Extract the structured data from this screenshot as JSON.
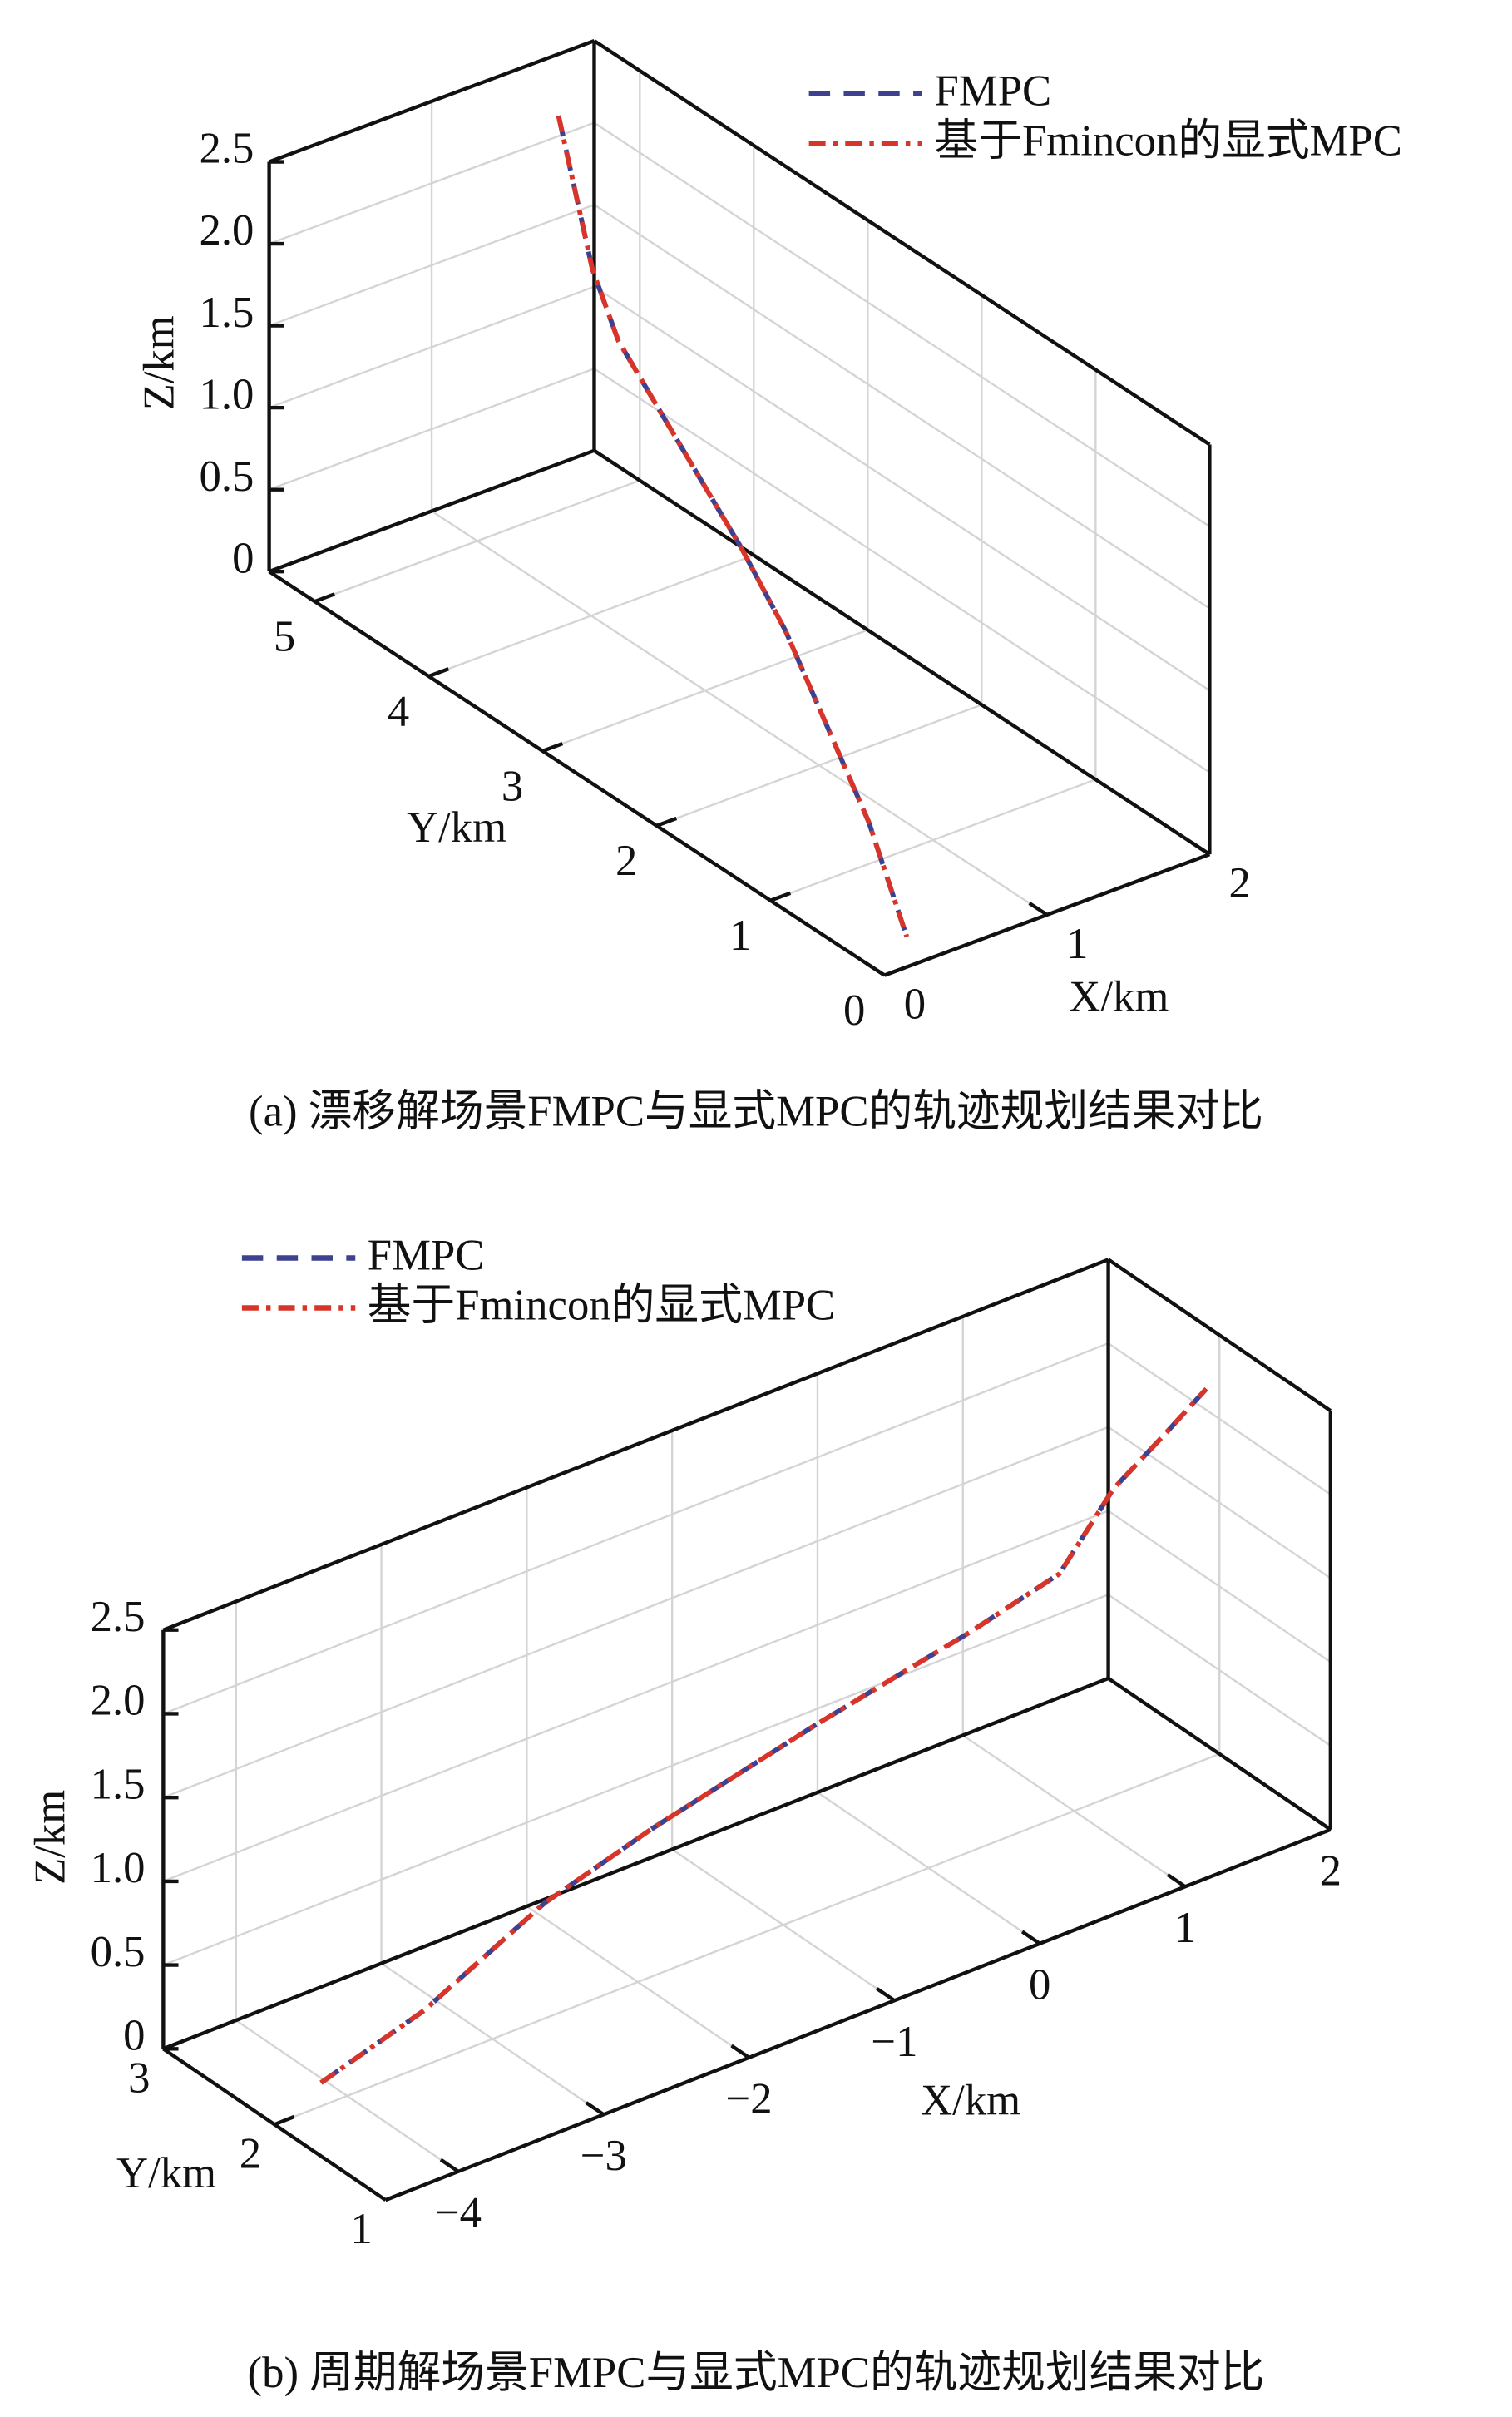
{
  "chart_data": [
    {
      "type": "line3d",
      "title": "(a) 漂移解场景FMPC与显式MPC的轨迹规划结果对比",
      "xlabel": "X/km",
      "ylabel": "Y/km",
      "zlabel": "Z/km",
      "xlim": [
        0,
        2
      ],
      "ylim": [
        0,
        5.4
      ],
      "zlim": [
        0,
        2.5
      ],
      "xticks": [
        0,
        1,
        2
      ],
      "yticks": [
        0,
        1,
        2,
        3,
        4,
        5
      ],
      "zticks": [
        0,
        0.5,
        {
          "value": 1,
          "label": "1.0"
        },
        1.5,
        {
          "value": 2,
          "label": "2.0"
        },
        2.5
      ],
      "grid": true,
      "legend": "upper right",
      "series": [
        {
          "name": "FMPC",
          "color": "#3d4190",
          "linestyle": "--",
          "x": [
            1.5,
            1.4,
            1.3,
            1.2,
            1.0,
            0.8,
            0.5,
            0.2
          ],
          "y": [
            5.0,
            4.56,
            4.19,
            3.78,
            2.69,
            2.01,
            0.85,
            0.09
          ],
          "z": [
            2.41,
            1.71,
            1.48,
            1.39,
            1.02,
            0.89,
            0.36,
            0.12
          ]
        },
        {
          "name": "基于Fmincon的显式MPC",
          "color": "#d8352a",
          "linestyle": "-.",
          "x": [
            1.5,
            1.4,
            1.3,
            1.2,
            1.0,
            0.8,
            0.5,
            0.2
          ],
          "y": [
            5.0,
            4.56,
            4.19,
            3.78,
            2.69,
            2.01,
            0.85,
            0.09
          ],
          "z": [
            2.41,
            1.71,
            1.48,
            1.39,
            1.02,
            0.89,
            0.36,
            0.12
          ]
        }
      ]
    },
    {
      "type": "line3d",
      "title": "(b) 周期解场景FMPC与显式MPC的轨迹规划结果对比",
      "xlabel": "X/km",
      "ylabel": "Y/km",
      "zlabel": "Z/km",
      "xlim": [
        -4.5,
        2
      ],
      "ylim": [
        1,
        3
      ],
      "zlim": [
        0,
        2.5
      ],
      "xticks": [
        {
          "value": -4,
          "label": "−4"
        },
        {
          "value": -3,
          "label": "−3"
        },
        {
          "value": -2,
          "label": "−2"
        },
        {
          "value": -1,
          "label": "−1"
        },
        0,
        1,
        2
      ],
      "yticks": [
        1,
        2,
        3
      ],
      "zticks": [
        0,
        0.5,
        {
          "value": 1,
          "label": "1.0"
        },
        1.5,
        {
          "value": 2,
          "label": "2.0"
        },
        2.5
      ],
      "grid": true,
      "legend": "upper left",
      "series": [
        {
          "name": "FMPC",
          "color": "#3d4190",
          "linestyle": "--",
          "x": [
            -4.18,
            -3.47,
            -2.64,
            -1.91,
            -0.77,
            0.28,
            0.9,
            1.27,
            1.63,
            1.91
          ],
          "y": [
            2,
            2,
            2,
            2,
            2,
            2,
            2,
            2,
            2,
            2
          ],
          "z": [
            0.14,
            0.33,
            0.69,
            0.88,
            1.12,
            1.31,
            1.45,
            1.83,
            2.04,
            2.21
          ]
        },
        {
          "name": "基于Fmincon的显式MPC",
          "color": "#d8352a",
          "linestyle": "-.",
          "x": [
            -4.18,
            -3.47,
            -2.64,
            -1.91,
            -0.77,
            0.28,
            0.9,
            1.27,
            1.63,
            1.91
          ],
          "y": [
            2,
            2,
            2,
            2,
            2,
            2,
            2,
            2,
            2,
            2
          ],
          "z": [
            0.14,
            0.33,
            0.69,
            0.88,
            1.12,
            1.31,
            1.45,
            1.83,
            2.04,
            2.21
          ]
        }
      ]
    }
  ]
}
